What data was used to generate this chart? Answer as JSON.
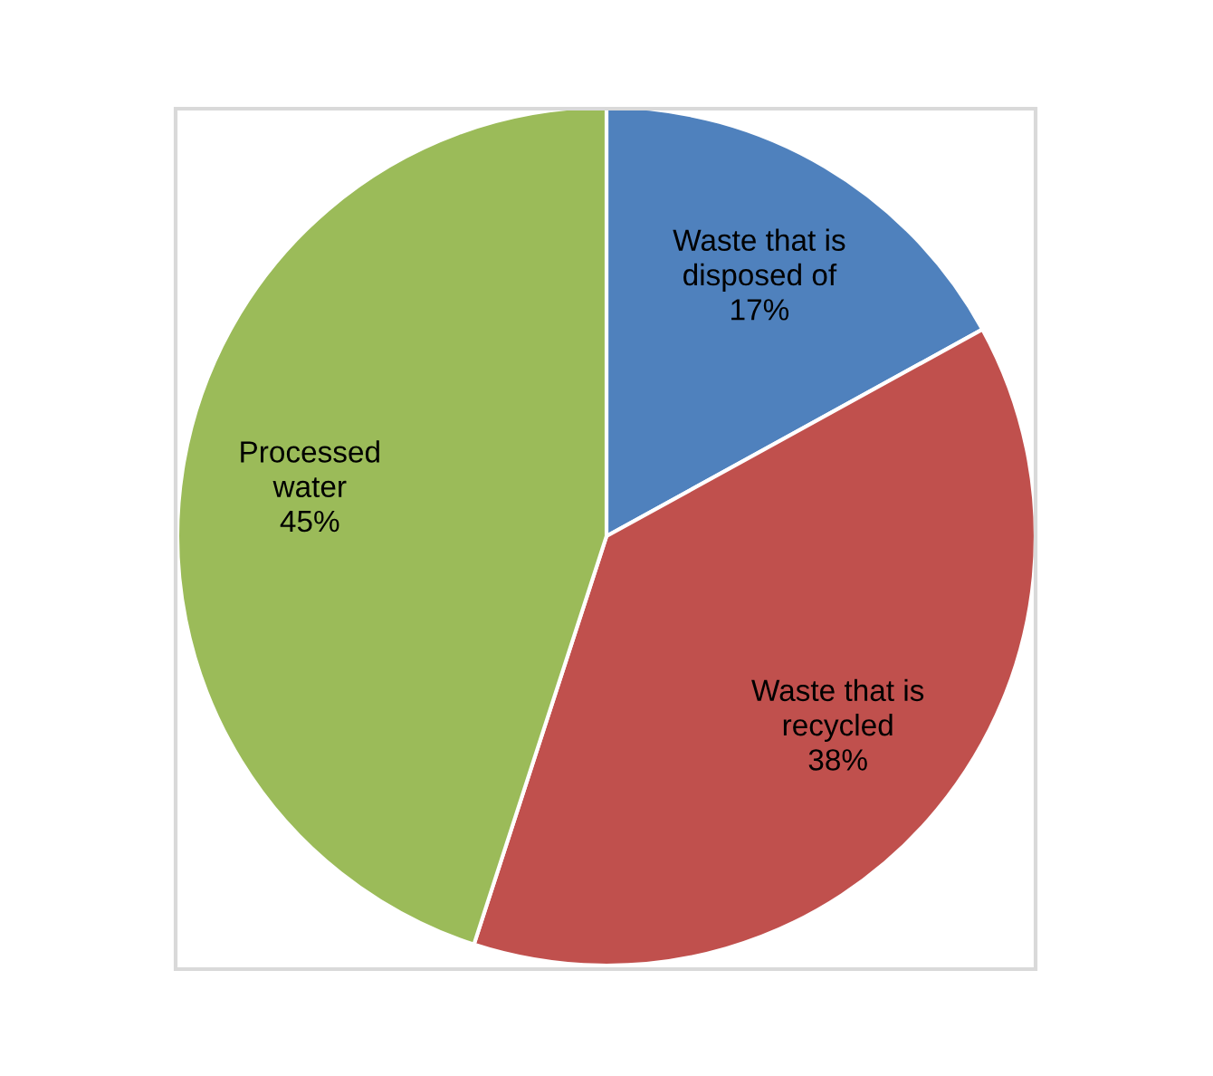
{
  "chart_data": {
    "type": "pie",
    "categories": [
      "Waste that is\ndisposed of",
      "Waste that is\nrecycled",
      "Processed\nwater"
    ],
    "values": [
      17,
      38,
      45
    ],
    "value_labels": [
      "17%",
      "38%",
      "45%"
    ],
    "colors": [
      "#4f81bd",
      "#c0504d",
      "#9bbb59"
    ],
    "legend": false
  }
}
